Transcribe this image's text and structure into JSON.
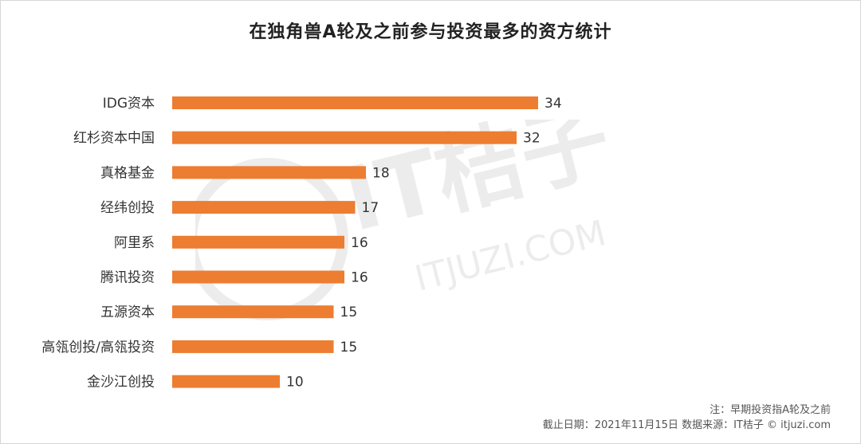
{
  "title": "在独角兽A轮及之前参与投资最多的资方统计",
  "footnote": "注：早期投资指A轮及之前",
  "source_line": "截止日期：2021年11月15日    数据来源：IT桔子 © itjuzi.com",
  "watermark": {
    "brand": "IT桔子",
    "domain": "ITJUZI.COM"
  },
  "colors": {
    "bar": "#ED7D31",
    "text": "#333333"
  },
  "chart_data": {
    "type": "bar",
    "orientation": "horizontal",
    "categories": [
      "IDG资本",
      "红杉资本中国",
      "真格基金",
      "经纬创投",
      "阿里系",
      "腾讯投资",
      "五源资本",
      "高瓴创投/高瓴投资",
      "金沙江创投"
    ],
    "values": [
      34,
      32,
      18,
      17,
      16,
      16,
      15,
      15,
      10
    ],
    "title": "在独角兽A轮及之前参与投资最多的资方统计",
    "xlim": [
      0,
      34
    ],
    "grid": false,
    "legend": "none"
  }
}
